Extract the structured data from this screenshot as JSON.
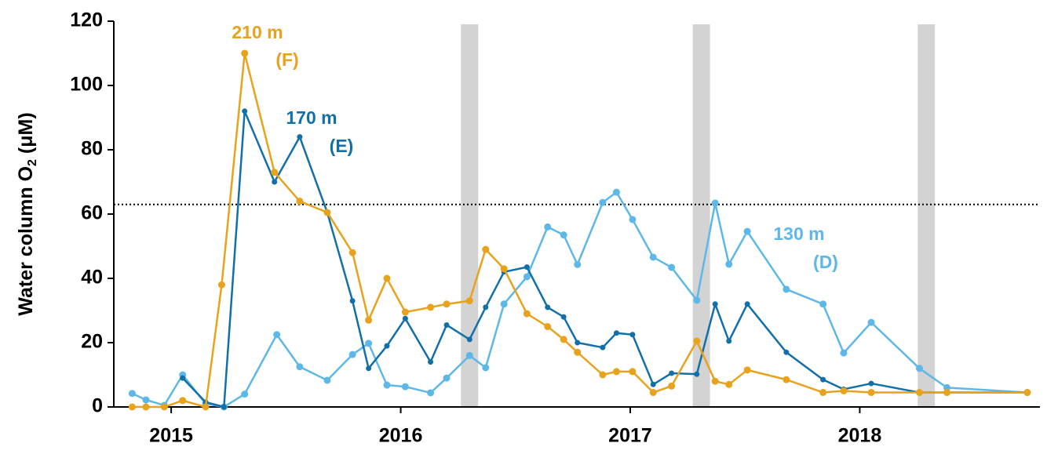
{
  "chart_data": {
    "type": "line",
    "ylabel": [
      "Water column O",
      "2",
      " (μM)"
    ],
    "xlim": [
      2014.75,
      2018.785
    ],
    "xticks": [
      2015,
      2016,
      2017,
      2018
    ],
    "ylim": [
      0,
      120
    ],
    "yticks": [
      0,
      20,
      40,
      60,
      80,
      100,
      120
    ],
    "reference_y": 63,
    "shaded_x": [
      2016.3,
      2017.31,
      2018.29
    ],
    "shade_width": 0.075,
    "shade_color": "#d3d3d3",
    "series": [
      {
        "name": "130 m",
        "tag": "(D)",
        "color": "#5db8e8",
        "x": [
          2014.83,
          2014.89,
          2014.97,
          2015.05,
          2015.15,
          2015.23,
          2015.32,
          2015.46,
          2015.56,
          2015.68,
          2015.79,
          2015.86,
          2015.94,
          2016.02,
          2016.13,
          2016.2,
          2016.3,
          2016.37,
          2016.45,
          2016.55,
          2016.64,
          2016.71,
          2016.77,
          2016.88,
          2016.94,
          2017.01,
          2017.1,
          2017.18,
          2017.29,
          2017.37,
          2017.43,
          2017.51,
          2017.68,
          2017.84,
          2017.93,
          2018.05,
          2018.26,
          2018.38,
          2018.73
        ],
        "values": [
          4.2,
          2.2,
          0.5,
          10,
          1,
          0,
          4,
          22.5,
          12.5,
          8.3,
          16.3,
          19.8,
          6.8,
          6.3,
          4.4,
          9,
          16,
          12.2,
          32,
          40.5,
          56,
          53.5,
          44.3,
          63.6,
          66.8,
          58.3,
          46.6,
          43.4,
          33.2,
          63.4,
          44.4,
          54.6,
          36.6,
          32,
          16.8,
          26.3,
          12,
          6,
          4.5
        ]
      },
      {
        "name": "170 m",
        "tag": "(E)",
        "color": "#1170aa",
        "x": [
          2015.05,
          2015.15,
          2015.23,
          2015.32,
          2015.45,
          2015.56,
          2015.68,
          2015.79,
          2015.86,
          2015.94,
          2016.02,
          2016.13,
          2016.2,
          2016.3,
          2016.37,
          2016.45,
          2016.55,
          2016.64,
          2016.71,
          2016.77,
          2016.88,
          2016.94,
          2017.01,
          2017.1,
          2017.18,
          2017.29,
          2017.37,
          2017.43,
          2017.51,
          2017.68,
          2017.84,
          2017.93,
          2018.05,
          2018.26,
          2018.38,
          2018.73
        ],
        "values": [
          9,
          1.5,
          0,
          92,
          70,
          84,
          60.5,
          33,
          12,
          19,
          27.5,
          14,
          25.5,
          21,
          31,
          42,
          43.5,
          31,
          28,
          20,
          18.5,
          23,
          22.5,
          7,
          10.5,
          10.2,
          32,
          20.5,
          32,
          17,
          8.5,
          5.5,
          7.3,
          4.5,
          4.5,
          4.5
        ]
      },
      {
        "name": "210 m",
        "tag": "(F)",
        "color": "#e8a21c",
        "x": [
          2014.83,
          2014.89,
          2014.97,
          2015.05,
          2015.15,
          2015.22,
          2015.32,
          2015.45,
          2015.56,
          2015.68,
          2015.79,
          2015.86,
          2015.94,
          2016.02,
          2016.13,
          2016.2,
          2016.3,
          2016.37,
          2016.45,
          2016.55,
          2016.64,
          2016.71,
          2016.77,
          2016.88,
          2016.94,
          2017.01,
          2017.1,
          2017.18,
          2017.29,
          2017.37,
          2017.43,
          2017.51,
          2017.68,
          2017.84,
          2017.93,
          2018.05,
          2018.26,
          2018.38,
          2018.73
        ],
        "values": [
          0,
          0,
          0,
          2,
          0,
          38,
          110,
          73,
          64,
          60.5,
          48,
          27,
          40,
          29.5,
          31,
          32,
          33,
          49,
          43,
          29,
          25,
          21,
          17,
          10,
          11,
          11,
          4.5,
          6.5,
          20.5,
          8,
          7,
          11.5,
          8.5,
          4.5,
          5,
          4.5,
          4.5,
          4.5,
          4.5
        ]
      }
    ]
  }
}
